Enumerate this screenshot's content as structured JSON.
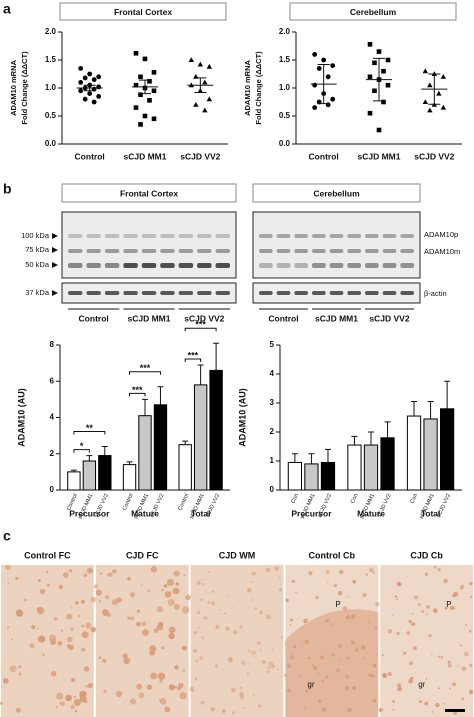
{
  "panel_labels": [
    "a",
    "b",
    "c"
  ],
  "blot": {
    "titles": [
      "Frontal Cortex",
      "Cerebellum"
    ],
    "markers": [
      "100 kDa",
      "75 kDa",
      "50 kDa",
      "37 kDa"
    ],
    "bands": [
      "ADAM10p",
      "ADAM10m",
      "β-actin"
    ],
    "groups": [
      "Control",
      "sCJD MM1",
      "sCJD VV2"
    ]
  },
  "histology": {
    "panels": [
      {
        "label": "Control FC"
      },
      {
        "label": "CJD FC"
      },
      {
        "label": "CJD WM"
      },
      {
        "label": "Control Cb",
        "markers": [
          "P",
          "gr"
        ]
      },
      {
        "label": "CJD Cb",
        "markers": [
          "P",
          "gr"
        ]
      }
    ]
  },
  "chart_data": [
    {
      "type": "dotplot",
      "title": "Frontal Cortex",
      "ylabel": [
        "ADAM10 mRNA",
        "Fold Change (ΔΔCT)"
      ],
      "categories": [
        "Control",
        "sCJD MM1",
        "sCJD VV2"
      ],
      "groups": [
        {
          "marker": "circle",
          "values": [
            1.35,
            1.25,
            1.2,
            1.18,
            1.15,
            1.1,
            1.05,
            1.02,
            1.0,
            0.98,
            0.95,
            0.9,
            0.85,
            0.8,
            0.75
          ],
          "mean": 1.0,
          "error": 0.05
        },
        {
          "marker": "square",
          "values": [
            1.62,
            1.52,
            1.28,
            1.2,
            1.12,
            1.05,
            1.0,
            0.95,
            0.88,
            0.78,
            0.65,
            0.5,
            0.45,
            0.35
          ],
          "mean": 1.02,
          "error": 0.12
        },
        {
          "marker": "triangle",
          "values": [
            1.5,
            1.42,
            1.38,
            1.2,
            1.1,
            1.05,
            0.95,
            0.8,
            0.7,
            0.6
          ],
          "mean": 1.05,
          "error": 0.13
        }
      ],
      "ylim": [
        0,
        2
      ],
      "yticks": [
        {
          "value": 0,
          "label": "0.0"
        },
        0.5,
        {
          "value": 1,
          "label": "1.0"
        },
        1.5,
        {
          "value": 2,
          "label": "2.0"
        }
      ]
    },
    {
      "type": "dotplot",
      "title": "Cerebellum",
      "ylabel": [
        "ADAM10 mRNA",
        "Fold Change (ΔΔCT)"
      ],
      "categories": [
        "Control",
        "sCJD MM1",
        "sCJD VV2"
      ],
      "groups": [
        {
          "marker": "circle",
          "values": [
            1.6,
            1.5,
            1.4,
            1.35,
            1.2,
            1.05,
            0.9,
            0.8,
            0.75,
            0.7,
            0.65
          ],
          "mean": 1.07,
          "error": 0.35
        },
        {
          "marker": "square",
          "values": [
            1.78,
            1.65,
            1.5,
            1.45,
            1.3,
            1.2,
            1.15,
            1.05,
            0.95,
            0.75,
            0.55,
            0.25
          ],
          "mean": 1.15,
          "error": 0.38
        },
        {
          "marker": "triangle",
          "values": [
            1.3,
            1.25,
            1.2,
            1.05,
            0.9,
            0.75,
            0.7,
            0.65,
            0.6
          ],
          "mean": 0.98,
          "error": 0.27
        }
      ],
      "ylim": [
        0,
        2
      ],
      "yticks": [
        {
          "value": 0,
          "label": "0.0"
        },
        0.5,
        {
          "value": 1,
          "label": "1.0"
        },
        1.5,
        {
          "value": 2,
          "label": "2.0"
        }
      ]
    },
    {
      "type": "bar",
      "ylabel": "ADAM10 (AU)",
      "categories": [
        "Control",
        "sCJD MM1",
        "sCJD VV2",
        "Control",
        "sCJD MM1",
        "sCJD VV2",
        "Control",
        "sCJD MM1",
        "sCJD VV2"
      ],
      "groups": [
        "Precursor",
        "Mature",
        "Total"
      ],
      "values": [
        1.0,
        1.6,
        1.9,
        1.4,
        4.1,
        4.7,
        2.5,
        5.8,
        6.6
      ],
      "errors": [
        0.1,
        0.3,
        0.5,
        0.15,
        0.9,
        1.0,
        0.2,
        1.1,
        1.5
      ],
      "colors": [
        "#ffffff",
        "#c8c8c8",
        "#000000",
        "#ffffff",
        "#c8c8c8",
        "#000000",
        "#ffffff",
        "#c8c8c8",
        "#000000"
      ],
      "significance": [
        "*",
        "**",
        "***",
        "***",
        "***",
        "***"
      ],
      "ylim": [
        0,
        8
      ],
      "yticks": [
        0,
        2,
        4,
        6,
        8
      ]
    },
    {
      "type": "bar",
      "ylabel": "ADAM10 (AU)",
      "categories": [
        "Con",
        "sCJD MM1",
        "sCJD VV2",
        "Con",
        "sCJD MM1",
        "sCJD VV2",
        "Con",
        "sCJD MM1",
        "sCJD VV2"
      ],
      "groups": [
        "Precursor",
        "Mature",
        "Total"
      ],
      "values": [
        0.95,
        0.9,
        0.95,
        1.55,
        1.55,
        1.8,
        2.55,
        2.45,
        2.8
      ],
      "errors": [
        0.3,
        0.35,
        0.45,
        0.3,
        0.45,
        0.55,
        0.5,
        0.6,
        0.95
      ],
      "colors": [
        "#ffffff",
        "#c8c8c8",
        "#000000",
        "#ffffff",
        "#c8c8c8",
        "#000000",
        "#ffffff",
        "#c8c8c8",
        "#000000"
      ],
      "ylim": [
        0,
        5
      ],
      "yticks": [
        0,
        1,
        2,
        3,
        4,
        5
      ]
    }
  ]
}
